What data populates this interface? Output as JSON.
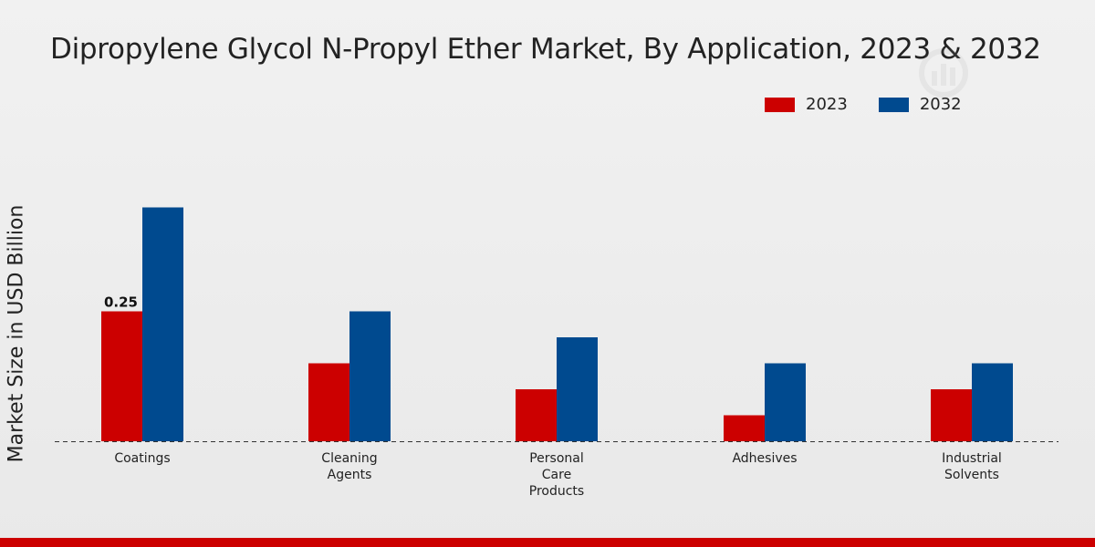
{
  "chart_data": {
    "type": "bar",
    "title": "Dipropylene Glycol N-Propyl Ether Market, By Application, 2023 & 2032",
    "xlabel": "",
    "ylabel": "Market Size in USD Billion",
    "ylim": [
      0,
      0.6
    ],
    "legend_position": "top-right",
    "categories": [
      "Coatings",
      "Cleaning Agents",
      "Personal Care Products",
      "Adhesives",
      "Industrial Solvents"
    ],
    "category_display": [
      [
        "Coatings"
      ],
      [
        "Cleaning",
        "Agents"
      ],
      [
        "Personal",
        "Care",
        "Products"
      ],
      [
        "Adhesives"
      ],
      [
        "Industrial",
        "Solvents"
      ]
    ],
    "series": [
      {
        "name": "2023",
        "values": [
          0.25,
          0.15,
          0.1,
          0.05,
          0.1
        ]
      },
      {
        "name": "2032",
        "values": [
          0.45,
          0.25,
          0.2,
          0.15,
          0.15
        ]
      }
    ],
    "data_labels": [
      {
        "series": "2023",
        "category": "Coatings",
        "text": "0.25"
      }
    ]
  },
  "colors": {
    "series_2023": "#cc0000",
    "series_2032": "#004a8f",
    "accent_bar": "#cc0000"
  }
}
